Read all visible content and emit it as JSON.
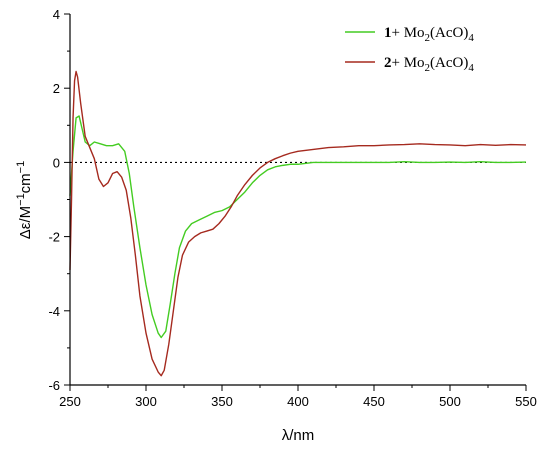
{
  "chart_data": {
    "type": "line",
    "xlabel": "λ/nm",
    "ylabel_main": "Δε/M",
    "ylabel_sup1": "−1",
    "ylabel_mid": "cm",
    "ylabel_sup2": "−1",
    "xlim": [
      250,
      550
    ],
    "ylim": [
      -6,
      4
    ],
    "x_ticks": [
      250,
      300,
      350,
      400,
      450,
      500,
      550
    ],
    "y_ticks": [
      4,
      2,
      0,
      -2,
      -4,
      -6
    ],
    "x_tick_labels": [
      "250",
      "300",
      "350",
      "400",
      "450",
      "500",
      "550"
    ],
    "y_tick_labels": [
      "4",
      "2",
      "0",
      "-2",
      "-4",
      "-6"
    ],
    "zero_line": "dotted",
    "legend_position": "top-right",
    "series": [
      {
        "legend_bold": "1",
        "legend_plus": "+ Mo",
        "legend_sub1": "2",
        "legend_mid": "(AcO)",
        "legend_sub2": "4",
        "color": "#44cc22",
        "points": [
          [
            250,
            -0.9
          ],
          [
            252,
            0.3
          ],
          [
            254,
            1.2
          ],
          [
            256,
            1.25
          ],
          [
            258,
            0.9
          ],
          [
            260,
            0.55
          ],
          [
            263,
            0.45
          ],
          [
            266,
            0.55
          ],
          [
            270,
            0.5
          ],
          [
            274,
            0.45
          ],
          [
            278,
            0.45
          ],
          [
            282,
            0.5
          ],
          [
            286,
            0.3
          ],
          [
            289,
            -0.3
          ],
          [
            292,
            -1.2
          ],
          [
            296,
            -2.3
          ],
          [
            300,
            -3.3
          ],
          [
            304,
            -4.1
          ],
          [
            308,
            -4.6
          ],
          [
            310,
            -4.72
          ],
          [
            313,
            -4.55
          ],
          [
            316,
            -3.8
          ],
          [
            319,
            -3.0
          ],
          [
            322,
            -2.3
          ],
          [
            326,
            -1.85
          ],
          [
            330,
            -1.65
          ],
          [
            335,
            -1.55
          ],
          [
            340,
            -1.45
          ],
          [
            345,
            -1.35
          ],
          [
            350,
            -1.3
          ],
          [
            355,
            -1.2
          ],
          [
            360,
            -1.0
          ],
          [
            365,
            -0.8
          ],
          [
            370,
            -0.55
          ],
          [
            375,
            -0.35
          ],
          [
            380,
            -0.2
          ],
          [
            385,
            -0.12
          ],
          [
            390,
            -0.08
          ],
          [
            395,
            -0.05
          ],
          [
            400,
            -0.05
          ],
          [
            410,
            0.0
          ],
          [
            420,
            0.0
          ],
          [
            430,
            0.0
          ],
          [
            440,
            0.0
          ],
          [
            450,
            0.0
          ],
          [
            460,
            0.0
          ],
          [
            470,
            0.02
          ],
          [
            480,
            0.0
          ],
          [
            490,
            0.0
          ],
          [
            500,
            0.01
          ],
          [
            510,
            0.0
          ],
          [
            520,
            0.02
          ],
          [
            530,
            0.0
          ],
          [
            540,
            0.0
          ],
          [
            550,
            0.01
          ]
        ]
      },
      {
        "legend_bold": "2",
        "legend_plus": "+ Mo",
        "legend_sub1": "2",
        "legend_mid": "(AcO)",
        "legend_sub2": "4",
        "color": "#a52a1f",
        "points": [
          [
            250,
            -2.9
          ],
          [
            251,
            -1.0
          ],
          [
            252,
            1.2
          ],
          [
            253,
            2.2
          ],
          [
            254,
            2.45
          ],
          [
            255,
            2.3
          ],
          [
            257,
            1.6
          ],
          [
            260,
            0.7
          ],
          [
            263,
            0.4
          ],
          [
            266,
            0.1
          ],
          [
            269,
            -0.45
          ],
          [
            272,
            -0.65
          ],
          [
            275,
            -0.55
          ],
          [
            278,
            -0.3
          ],
          [
            281,
            -0.25
          ],
          [
            284,
            -0.4
          ],
          [
            287,
            -0.75
          ],
          [
            290,
            -1.5
          ],
          [
            293,
            -2.5
          ],
          [
            296,
            -3.6
          ],
          [
            300,
            -4.6
          ],
          [
            304,
            -5.3
          ],
          [
            308,
            -5.65
          ],
          [
            310,
            -5.75
          ],
          [
            312,
            -5.6
          ],
          [
            315,
            -4.9
          ],
          [
            318,
            -4.0
          ],
          [
            321,
            -3.1
          ],
          [
            324,
            -2.5
          ],
          [
            328,
            -2.15
          ],
          [
            332,
            -2.0
          ],
          [
            336,
            -1.9
          ],
          [
            340,
            -1.85
          ],
          [
            344,
            -1.8
          ],
          [
            348,
            -1.65
          ],
          [
            352,
            -1.45
          ],
          [
            356,
            -1.2
          ],
          [
            360,
            -0.9
          ],
          [
            365,
            -0.6
          ],
          [
            370,
            -0.35
          ],
          [
            375,
            -0.15
          ],
          [
            380,
            0.0
          ],
          [
            385,
            0.1
          ],
          [
            390,
            0.18
          ],
          [
            395,
            0.25
          ],
          [
            400,
            0.3
          ],
          [
            410,
            0.35
          ],
          [
            420,
            0.4
          ],
          [
            430,
            0.42
          ],
          [
            440,
            0.45
          ],
          [
            450,
            0.45
          ],
          [
            460,
            0.47
          ],
          [
            470,
            0.48
          ],
          [
            480,
            0.5
          ],
          [
            490,
            0.48
          ],
          [
            500,
            0.47
          ],
          [
            510,
            0.45
          ],
          [
            520,
            0.48
          ],
          [
            530,
            0.46
          ],
          [
            540,
            0.48
          ],
          [
            550,
            0.47
          ]
        ]
      }
    ]
  }
}
